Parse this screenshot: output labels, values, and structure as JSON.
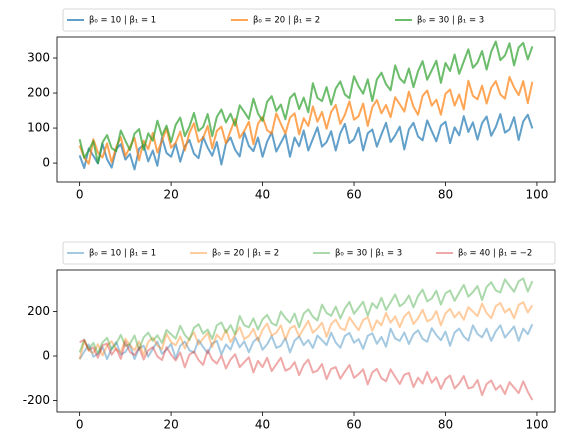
{
  "chart_data": [
    {
      "type": "line",
      "alpha": 0.7,
      "legend": "above",
      "legend_columns": 3,
      "x": [
        0,
        1,
        2,
        3,
        4,
        5,
        6,
        7,
        8,
        9,
        10,
        11,
        12,
        13,
        14,
        15,
        16,
        17,
        18,
        19,
        20,
        21,
        22,
        23,
        24,
        25,
        26,
        27,
        28,
        29,
        30,
        31,
        32,
        33,
        34,
        35,
        36,
        37,
        38,
        39,
        40,
        41,
        42,
        43,
        44,
        45,
        46,
        47,
        48,
        49,
        50,
        51,
        52,
        53,
        54,
        55,
        56,
        57,
        58,
        59,
        60,
        61,
        62,
        63,
        64,
        65,
        66,
        67,
        68,
        69,
        70,
        71,
        72,
        73,
        74,
        75,
        76,
        77,
        78,
        79,
        80,
        81,
        82,
        83,
        84,
        85,
        86,
        87,
        88,
        89,
        90,
        91,
        92,
        93,
        94,
        95,
        96,
        97,
        98,
        99
      ],
      "xlim": [
        -4.95,
        103.95
      ],
      "xticks": [
        0,
        20,
        40,
        60,
        80,
        100
      ],
      "ylim": [
        -54,
        360
      ],
      "yticks": [
        0,
        100,
        200,
        300
      ],
      "series": [
        {
          "name": "β₀ = 10 | β₁ = 1",
          "color": "#1f77b4",
          "values": [
            22,
            -14,
            42,
            21,
            -1,
            55,
            11,
            -13,
            40,
            54,
            10,
            26,
            -18,
            41,
            52,
            5,
            36,
            -8,
            73,
            29,
            18,
            56,
            4,
            48,
            66,
            27,
            14,
            75,
            44,
            21,
            60,
            -4,
            56,
            73,
            38,
            19,
            88,
            49,
            34,
            73,
            18,
            61,
            88,
            33,
            58,
            83,
            18,
            73,
            48,
            93,
            36,
            69,
            102,
            47,
            60,
            91,
            36,
            85,
            112,
            57,
            68,
            101,
            36,
            85,
            96,
            47,
            82,
            115,
            60,
            79,
            104,
            39,
            96,
            115,
            76,
            65,
            122,
            91,
            62,
            107,
            118,
            57,
            102,
            79,
            134,
            89,
            116,
            67,
            114,
            133,
            78,
            103,
            140,
            87,
            96,
            131,
            66,
            119,
            138,
            99
          ]
        },
        {
          "name": "β₀ = 20 | β₁ = 2",
          "color": "#ff7f0e",
          "values": [
            50,
            16,
            -2,
            68,
            30,
            16,
            56,
            2,
            46,
            74,
            20,
            46,
            72,
            8,
            64,
            40,
            86,
            30,
            64,
            98,
            44,
            58,
            90,
            36,
            86,
            114,
            60,
            72,
            106,
            42,
            92,
            104,
            56,
            92,
            126,
            72,
            92,
            118,
            54,
            112,
            132,
            94,
            84,
            142,
            112,
            84,
            130,
            142,
            82,
            128,
            106,
            162,
            118,
            146,
            98,
            146,
            166,
            112,
            138,
            176,
            124,
            134,
            170,
            106,
            160,
            180,
            142,
            166,
            131,
            188,
            168,
            147,
            204,
            161,
            138,
            192,
            207,
            164,
            181,
            138,
            198,
            210,
            164,
            196,
            153,
            235,
            192,
            182,
            221,
            170,
            215,
            234,
            196,
            184,
            246,
            216,
            194,
            234,
            171,
            232
          ]
        },
        {
          "name": "β₀ = 30 | β₁ = 3",
          "color": "#2ca02c",
          "values": [
            68,
            15,
            36,
            63,
            0,
            59,
            80,
            43,
            34,
            93,
            64,
            37,
            84,
            97,
            38,
            85,
            64,
            121,
            78,
            107,
            60,
            109,
            130,
            77,
            104,
            143,
            92,
            103,
            140,
            77,
            132,
            153,
            116,
            141,
            107,
            165,
            146,
            126,
            184,
            142,
            120,
            175,
            191,
            149,
            167,
            125,
            186,
            199,
            154,
            187,
            145,
            228,
            186,
            177,
            217,
            167,
            213,
            233,
            196,
            185,
            248,
            219,
            198,
            239,
            177,
            239,
            258,
            225,
            208,
            279,
            242,
            229,
            270,
            217,
            262,
            291,
            238,
            265,
            292,
            229,
            286,
            263,
            310,
            255,
            290,
            325,
            272,
            287,
            320,
            267,
            318,
            347,
            294,
            307,
            342,
            279,
            330,
            343,
            296,
            333
          ]
        }
      ]
    },
    {
      "type": "line",
      "alpha": 0.4,
      "legend": "above",
      "legend_columns": 4,
      "x": [
        0,
        1,
        2,
        3,
        4,
        5,
        6,
        7,
        8,
        9,
        10,
        11,
        12,
        13,
        14,
        15,
        16,
        17,
        18,
        19,
        20,
        21,
        22,
        23,
        24,
        25,
        26,
        27,
        28,
        29,
        30,
        31,
        32,
        33,
        34,
        35,
        36,
        37,
        38,
        39,
        40,
        41,
        42,
        43,
        44,
        45,
        46,
        47,
        48,
        49,
        50,
        51,
        52,
        53,
        54,
        55,
        56,
        57,
        58,
        59,
        60,
        61,
        62,
        63,
        64,
        65,
        66,
        67,
        68,
        69,
        70,
        71,
        72,
        73,
        74,
        75,
        76,
        77,
        78,
        79,
        80,
        81,
        82,
        83,
        84,
        85,
        86,
        87,
        88,
        89,
        90,
        91,
        92,
        93,
        94,
        95,
        96,
        97,
        98,
        99
      ],
      "xlim": [
        -4.95,
        103.95
      ],
      "xticks": [
        0,
        20,
        40,
        60,
        80,
        100
      ],
      "ylim": [
        -252,
        387
      ],
      "yticks": [
        -200,
        0,
        200
      ],
      "series": [
        {
          "name": "β₀ = 10 | β₁ = 1",
          "color": "#1f77b4",
          "values": [
            -14,
            19,
            52,
            -3,
            10,
            41,
            -14,
            35,
            62,
            7,
            18,
            51,
            -14,
            35,
            46,
            -3,
            32,
            65,
            10,
            29,
            54,
            -11,
            46,
            65,
            26,
            15,
            72,
            41,
            12,
            57,
            68,
            7,
            52,
            29,
            84,
            39,
            66,
            17,
            64,
            83,
            28,
            53,
            90,
            37,
            46,
            81,
            16,
            69,
            88,
            49,
            72,
            36,
            92,
            71,
            49,
            105,
            61,
            37,
            90,
            104,
            60,
            76,
            32,
            91,
            102,
            55,
            86,
            42,
            123,
            79,
            68,
            106,
            54,
            98,
            116,
            77,
            64,
            125,
            94,
            71,
            110,
            46,
            106,
            123,
            88,
            69,
            138,
            99,
            84,
            123,
            68,
            111,
            138,
            83,
            108,
            133,
            68,
            123,
            98,
            143
          ]
        },
        {
          "name": "β₀ = 20 | β₁ = 2",
          "color": "#ff7f0e",
          "values": [
            -15,
            67,
            24,
            14,
            53,
            2,
            47,
            66,
            28,
            16,
            78,
            48,
            26,
            66,
            3,
            64,
            82,
            48,
            30,
            100,
            62,
            48,
            88,
            34,
            78,
            106,
            52,
            78,
            104,
            40,
            96,
            72,
            118,
            62,
            96,
            130,
            76,
            90,
            122,
            68,
            118,
            146,
            92,
            104,
            138,
            74,
            124,
            136,
            88,
            124,
            158,
            104,
            124,
            150,
            86,
            144,
            164,
            126,
            116,
            174,
            144,
            116,
            162,
            174,
            114,
            160,
            138,
            194,
            150,
            178,
            130,
            178,
            198,
            144,
            170,
            208,
            156,
            166,
            202,
            138,
            192,
            212,
            174,
            198,
            163,
            220,
            200,
            179,
            236,
            193,
            170,
            224,
            239,
            196,
            213,
            170,
            230,
            242,
            196,
            228
          ]
        },
        {
          "name": "β₀ = 30 | β₁ = 3",
          "color": "#2ca02c",
          "values": [
            16,
            73,
            30,
            59,
            12,
            61,
            82,
            29,
            56,
            95,
            44,
            55,
            92,
            29,
            84,
            105,
            68,
            93,
            59,
            117,
            98,
            78,
            136,
            94,
            72,
            127,
            143,
            101,
            119,
            77,
            138,
            151,
            106,
            139,
            97,
            180,
            138,
            129,
            169,
            119,
            165,
            185,
            148,
            137,
            200,
            171,
            150,
            191,
            129,
            191,
            210,
            177,
            160,
            231,
            194,
            181,
            222,
            169,
            214,
            243,
            190,
            217,
            244,
            181,
            238,
            215,
            262,
            207,
            242,
            277,
            224,
            239,
            272,
            219,
            270,
            299,
            246,
            259,
            294,
            231,
            282,
            295,
            248,
            285,
            320,
            267,
            288,
            315,
            252,
            311,
            332,
            295,
            286,
            345,
            316,
            289,
            336,
            349,
            290,
            337
          ]
        },
        {
          "name": "β₀ = 40 | β₁ = −2",
          "color": "#d62728",
          "values": [
            62,
            73,
            26,
            39,
            -8,
            48,
            56,
            6,
            34,
            -13,
            65,
            18,
            4,
            39,
            -16,
            25,
            40,
            -2,
            -18,
            40,
            6,
            -20,
            16,
            -51,
            6,
            20,
            -18,
            -40,
            26,
            -16,
            -34,
            2,
            -56,
            -16,
            8,
            -50,
            -28,
            -6,
            -74,
            -22,
            -50,
            -8,
            -68,
            -38,
            -8,
            -66,
            -56,
            -28,
            -86,
            -40,
            -16,
            -74,
            -66,
            -36,
            -104,
            -58,
            -50,
            -102,
            -70,
            -40,
            -98,
            -82,
            -60,
            -128,
            -74,
            -58,
            -100,
            -114,
            -60,
            -94,
            -126,
            -84,
            -76,
            -140,
            -98,
            -124,
            -72,
            -120,
            -96,
            -148,
            -104,
            -88,
            -146,
            -124,
            -90,
            -146,
            -140,
            -108,
            -176,
            -126,
            -110,
            -152,
            -132,
            -171,
            -118,
            -142,
            -167,
            -114,
            -161,
            -198
          ]
        }
      ]
    }
  ]
}
